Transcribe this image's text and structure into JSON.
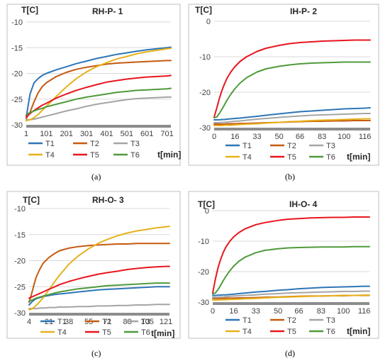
{
  "series_colors": {
    "T1": "#2e75b6",
    "T2": "#c55a11",
    "T3": "#a5a5a5",
    "T4": "#e6b11c",
    "T5": "#e8161e",
    "T6": "#4f9a3c"
  },
  "chart_data": [
    {
      "type": "line",
      "title": "RH-P- 1",
      "ylabel": "T[C]",
      "xlabel": "t[min]",
      "caption": "(a)",
      "xlim": [
        1,
        720
      ],
      "ylim": [
        -30,
        -10
      ],
      "xticks": [
        1,
        101,
        201,
        301,
        401,
        501,
        601,
        701
      ],
      "yticks": [
        -30,
        -25,
        -20,
        -15,
        -10
      ],
      "legend": [
        "T1",
        "T2",
        "T3",
        "T4",
        "T5",
        "T6"
      ],
      "x": [
        1,
        20,
        40,
        60,
        80,
        101,
        150,
        201,
        250,
        301,
        350,
        401,
        450,
        501,
        550,
        601,
        650,
        701,
        720
      ],
      "series": [
        {
          "name": "T1",
          "values": [
            -28.5,
            -24.0,
            -21.8,
            -21.0,
            -20.4,
            -20.0,
            -19.3,
            -18.7,
            -18.1,
            -17.6,
            -17.1,
            -16.7,
            -16.3,
            -16.0,
            -15.7,
            -15.4,
            -15.2,
            -15.0,
            -14.9
          ]
        },
        {
          "name": "T2",
          "values": [
            -28.8,
            -27.5,
            -25.5,
            -23.8,
            -22.6,
            -21.8,
            -20.6,
            -19.8,
            -19.2,
            -18.8,
            -18.5,
            -18.2,
            -18.0,
            -17.9,
            -17.8,
            -17.7,
            -17.6,
            -17.5,
            -17.5
          ]
        },
        {
          "name": "T3",
          "values": [
            -29.0,
            -29.0,
            -28.9,
            -28.7,
            -28.5,
            -28.3,
            -27.8,
            -27.3,
            -26.9,
            -26.4,
            -26.0,
            -25.7,
            -25.4,
            -25.1,
            -24.9,
            -24.8,
            -24.7,
            -24.6,
            -24.6
          ]
        },
        {
          "name": "T4",
          "values": [
            -29.2,
            -29.0,
            -28.6,
            -28.0,
            -27.2,
            -26.4,
            -24.5,
            -22.6,
            -21.0,
            -19.7,
            -18.7,
            -17.9,
            -17.2,
            -16.7,
            -16.2,
            -15.8,
            -15.5,
            -15.2,
            -15.1
          ]
        },
        {
          "name": "T5",
          "values": [
            -28.5,
            -27.8,
            -27.2,
            -26.7,
            -26.2,
            -25.8,
            -24.8,
            -24.0,
            -23.3,
            -22.7,
            -22.2,
            -21.7,
            -21.4,
            -21.1,
            -20.9,
            -20.7,
            -20.6,
            -20.5,
            -20.4
          ]
        },
        {
          "name": "T6",
          "values": [
            -28.0,
            -27.6,
            -27.3,
            -27.0,
            -26.8,
            -26.5,
            -26.0,
            -25.5,
            -25.0,
            -24.6,
            -24.3,
            -24.0,
            -23.7,
            -23.5,
            -23.3,
            -23.2,
            -23.1,
            -23.0,
            -22.9
          ]
        }
      ]
    },
    {
      "type": "line",
      "title": "IH-P- 2",
      "ylabel": "T[C]",
      "xlabel": "t[min]",
      "caption": "(b)",
      "xlim": [
        0,
        120
      ],
      "ylim": [
        -30,
        0
      ],
      "xticks": [
        0,
        16,
        33,
        50,
        66,
        83,
        100,
        116
      ],
      "yticks": [
        -30,
        -20,
        -10,
        0
      ],
      "legend": [
        "T1",
        "T2",
        "T3",
        "T4",
        "T5",
        "T6"
      ],
      "x": [
        0,
        2,
        4,
        6,
        8,
        10,
        13,
        16,
        20,
        25,
        33,
        40,
        50,
        58,
        66,
        75,
        83,
        92,
        100,
        108,
        116,
        120
      ],
      "series": [
        {
          "name": "T1",
          "values": [
            -27.8,
            -27.8,
            -27.8,
            -27.7,
            -27.7,
            -27.6,
            -27.5,
            -27.4,
            -27.3,
            -27.1,
            -26.8,
            -26.5,
            -26.1,
            -25.8,
            -25.5,
            -25.3,
            -25.1,
            -24.9,
            -24.7,
            -24.6,
            -24.5,
            -24.4
          ]
        },
        {
          "name": "T2",
          "values": [
            -29.0,
            -29.0,
            -29.0,
            -29.0,
            -29.0,
            -28.9,
            -28.9,
            -28.9,
            -28.8,
            -28.8,
            -28.7,
            -28.6,
            -28.5,
            -28.4,
            -28.3,
            -28.2,
            -28.2,
            -28.1,
            -28.1,
            -28.0,
            -28.0,
            -28.0
          ]
        },
        {
          "name": "T3",
          "values": [
            -28.6,
            -28.6,
            -28.6,
            -28.5,
            -28.5,
            -28.4,
            -28.3,
            -28.2,
            -28.1,
            -27.9,
            -27.6,
            -27.4,
            -27.1,
            -26.9,
            -26.7,
            -26.5,
            -26.4,
            -26.3,
            -26.2,
            -26.1,
            -26.0,
            -26.0
          ]
        },
        {
          "name": "T4",
          "values": [
            -29.4,
            -29.4,
            -29.4,
            -29.4,
            -29.3,
            -29.3,
            -29.3,
            -29.2,
            -29.1,
            -29.0,
            -28.9,
            -28.7,
            -28.5,
            -28.3,
            -28.2,
            -28.0,
            -27.9,
            -27.8,
            -27.7,
            -27.6,
            -27.5,
            -27.5
          ]
        },
        {
          "name": "T5",
          "values": [
            -27.0,
            -24.5,
            -21.8,
            -19.5,
            -17.6,
            -16.0,
            -14.2,
            -12.8,
            -11.3,
            -10.0,
            -8.5,
            -7.6,
            -6.8,
            -6.3,
            -6.0,
            -5.8,
            -5.6,
            -5.5,
            -5.4,
            -5.3,
            -5.3,
            -5.3
          ]
        },
        {
          "name": "T6",
          "values": [
            -27.2,
            -27.0,
            -26.0,
            -24.8,
            -23.5,
            -22.2,
            -20.5,
            -19.0,
            -17.4,
            -15.9,
            -14.3,
            -13.4,
            -12.7,
            -12.3,
            -12.0,
            -11.8,
            -11.7,
            -11.6,
            -11.5,
            -11.5,
            -11.5,
            -11.5
          ]
        }
      ]
    },
    {
      "type": "line",
      "title": "RH-O- 3",
      "ylabel": "T[C]",
      "xlabel": "t[min]",
      "caption": "(c)",
      "xlim": [
        4,
        124
      ],
      "ylim": [
        -30,
        -10
      ],
      "xticks": [
        4,
        21,
        38,
        55,
        71,
        88,
        105,
        121
      ],
      "yticks": [
        -30,
        -25,
        -20,
        -15,
        -10
      ],
      "legend": [
        "T1",
        "T2",
        "T3",
        "T4",
        "T5",
        "T6"
      ],
      "x": [
        4,
        6,
        8,
        10,
        13,
        16,
        21,
        26,
        30,
        38,
        46,
        55,
        63,
        71,
        80,
        88,
        96,
        105,
        113,
        121,
        124
      ],
      "series": [
        {
          "name": "T1",
          "values": [
            -28.5,
            -28.0,
            -27.6,
            -27.3,
            -27.1,
            -26.9,
            -26.7,
            -26.5,
            -26.4,
            -26.2,
            -26.0,
            -25.8,
            -25.6,
            -25.5,
            -25.4,
            -25.3,
            -25.2,
            -25.1,
            -25.0,
            -25.0,
            -25.0
          ]
        },
        {
          "name": "T2",
          "values": [
            -28.0,
            -26.5,
            -24.8,
            -23.2,
            -21.7,
            -20.5,
            -19.4,
            -18.6,
            -18.1,
            -17.6,
            -17.3,
            -17.1,
            -17.0,
            -16.9,
            -16.8,
            -16.8,
            -16.7,
            -16.7,
            -16.7,
            -16.7,
            -16.7
          ]
        },
        {
          "name": "T3",
          "values": [
            -29.2,
            -29.2,
            -29.2,
            -29.2,
            -29.1,
            -29.1,
            -29.0,
            -29.0,
            -28.9,
            -28.9,
            -28.8,
            -28.8,
            -28.7,
            -28.7,
            -28.6,
            -28.6,
            -28.5,
            -28.5,
            -28.4,
            -28.4,
            -28.4
          ]
        },
        {
          "name": "T4",
          "values": [
            -29.4,
            -29.3,
            -29.0,
            -28.6,
            -27.9,
            -27.1,
            -25.6,
            -24.0,
            -22.8,
            -20.7,
            -19.1,
            -17.7,
            -16.7,
            -15.9,
            -15.2,
            -14.7,
            -14.3,
            -14.0,
            -13.7,
            -13.5,
            -13.4
          ]
        },
        {
          "name": "T5",
          "values": [
            -27.2,
            -27.0,
            -26.8,
            -26.6,
            -26.3,
            -26.0,
            -25.5,
            -25.0,
            -24.6,
            -24.0,
            -23.5,
            -23.0,
            -22.6,
            -22.3,
            -22.0,
            -21.7,
            -21.5,
            -21.3,
            -21.2,
            -21.1,
            -21.1
          ]
        },
        {
          "name": "T6",
          "values": [
            -27.8,
            -27.6,
            -27.4,
            -27.2,
            -27.0,
            -26.8,
            -26.5,
            -26.2,
            -26.0,
            -25.7,
            -25.4,
            -25.2,
            -25.0,
            -24.8,
            -24.7,
            -24.6,
            -24.5,
            -24.4,
            -24.3,
            -24.3,
            -24.3
          ]
        }
      ]
    },
    {
      "type": "line",
      "title": "IH-O- 4",
      "ylabel": "T[C]",
      "xlabel": "t[min]",
      "caption": "(d)",
      "xlim": [
        0,
        120
      ],
      "ylim": [
        -30,
        0
      ],
      "xticks": [
        0,
        16,
        33,
        50,
        66,
        83,
        100,
        116
      ],
      "yticks": [
        -30,
        -20,
        -10,
        0
      ],
      "legend": [
        "T1",
        "T2",
        "T3",
        "T4",
        "T5",
        "T6"
      ],
      "x": [
        0,
        2,
        4,
        6,
        8,
        10,
        13,
        16,
        20,
        25,
        33,
        40,
        50,
        58,
        66,
        75,
        83,
        92,
        100,
        108,
        116,
        120
      ],
      "series": [
        {
          "name": "T1",
          "values": [
            -27.8,
            -27.8,
            -27.7,
            -27.7,
            -27.6,
            -27.6,
            -27.5,
            -27.4,
            -27.2,
            -27.0,
            -26.7,
            -26.5,
            -26.1,
            -25.9,
            -25.6,
            -25.4,
            -25.2,
            -25.1,
            -25.0,
            -24.9,
            -24.8,
            -24.8
          ]
        },
        {
          "name": "T2",
          "values": [
            -28.8,
            -28.8,
            -28.8,
            -28.8,
            -28.8,
            -28.7,
            -28.7,
            -28.7,
            -28.6,
            -28.6,
            -28.5,
            -28.4,
            -28.3,
            -28.2,
            -28.1,
            -28.0,
            -28.0,
            -27.9,
            -27.9,
            -27.8,
            -27.8,
            -27.8
          ]
        },
        {
          "name": "T3",
          "values": [
            -28.4,
            -28.4,
            -28.4,
            -28.3,
            -28.3,
            -28.2,
            -28.1,
            -28.0,
            -27.9,
            -27.8,
            -27.6,
            -27.4,
            -27.2,
            -27.0,
            -26.9,
            -26.8,
            -26.7,
            -26.6,
            -26.5,
            -26.5,
            -26.4,
            -26.4
          ]
        },
        {
          "name": "T4",
          "values": [
            -29.3,
            -29.3,
            -29.3,
            -29.2,
            -29.2,
            -29.2,
            -29.1,
            -29.1,
            -29.0,
            -28.9,
            -28.8,
            -28.6,
            -28.4,
            -28.3,
            -28.2,
            -28.1,
            -28.0,
            -27.9,
            -27.8,
            -27.8,
            -27.7,
            -27.7
          ]
        },
        {
          "name": "T5",
          "values": [
            -27.0,
            -22.5,
            -18.8,
            -16.0,
            -13.8,
            -12.0,
            -10.1,
            -8.6,
            -7.2,
            -5.9,
            -4.6,
            -3.9,
            -3.2,
            -2.8,
            -2.6,
            -2.4,
            -2.3,
            -2.2,
            -2.2,
            -2.1,
            -2.1,
            -2.1
          ]
        },
        {
          "name": "T6",
          "values": [
            -27.3,
            -27.0,
            -25.9,
            -24.5,
            -23.0,
            -21.6,
            -19.8,
            -18.2,
            -16.6,
            -15.2,
            -13.8,
            -13.0,
            -12.5,
            -12.2,
            -12.1,
            -12.0,
            -11.9,
            -11.9,
            -11.9,
            -11.8,
            -11.8,
            -11.8
          ]
        }
      ]
    }
  ]
}
